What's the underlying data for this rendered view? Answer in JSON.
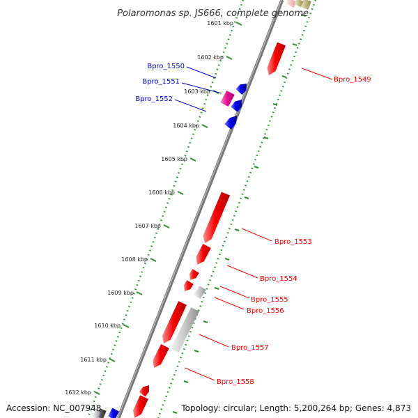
{
  "title": "Polaromonas sp. JS666, complete genome",
  "accession": "Accession: NC_007948",
  "topology": "Topology: circular; Length: 5,200,264 bp; Genes: 4,873",
  "colors": {
    "backbone": "#8a8a8a",
    "dotted_ring": "#2e8b2e",
    "tick": "#2e8b2e",
    "leader_red": "#ff0000",
    "leader_blue": "#0000cc",
    "gene_red": "#ff0000",
    "gene_blue": "#0000ff",
    "gene_magenta": "#ee1199",
    "gene_gray": "#c8c8c8",
    "gene_olive": "#c8c08a",
    "gene_dark": "#555555"
  },
  "ticks": [
    {
      "label": "1601 kbp",
      "kbp": 1601
    },
    {
      "label": "1602 kbp",
      "kbp": 1602
    },
    {
      "label": "1603 kbp",
      "kbp": 1603
    },
    {
      "label": "1604 kbp",
      "kbp": 1604
    },
    {
      "label": "1605 kbp",
      "kbp": 1605
    },
    {
      "label": "1606 kbp",
      "kbp": 1606
    },
    {
      "label": "1607 kbp",
      "kbp": 1607
    },
    {
      "label": "1608 kbp",
      "kbp": 1608
    },
    {
      "label": "1609 kbp",
      "kbp": 1609
    },
    {
      "label": "1610 kbp",
      "kbp": 1610
    },
    {
      "label": "1611 kbp",
      "kbp": 1611
    },
    {
      "label": "1612 kbp",
      "kbp": 1612
    }
  ],
  "gene_labels": [
    {
      "name": "Bpro_1549",
      "side": "right",
      "color": "red"
    },
    {
      "name": "Bpro_1550",
      "side": "left",
      "color": "blue"
    },
    {
      "name": "Bpro_1551",
      "side": "left",
      "color": "blue"
    },
    {
      "name": "Bpro_1552",
      "side": "left",
      "color": "blue"
    },
    {
      "name": "Bpro_1553",
      "side": "right",
      "color": "red"
    },
    {
      "name": "Bpro_1554",
      "side": "right",
      "color": "red"
    },
    {
      "name": "Bpro_1555",
      "side": "right",
      "color": "red"
    },
    {
      "name": "Bpro_1556",
      "side": "right",
      "color": "red"
    },
    {
      "name": "Bpro_1557",
      "side": "right",
      "color": "red"
    },
    {
      "name": "Bpro_1558",
      "side": "right",
      "color": "red"
    }
  ]
}
